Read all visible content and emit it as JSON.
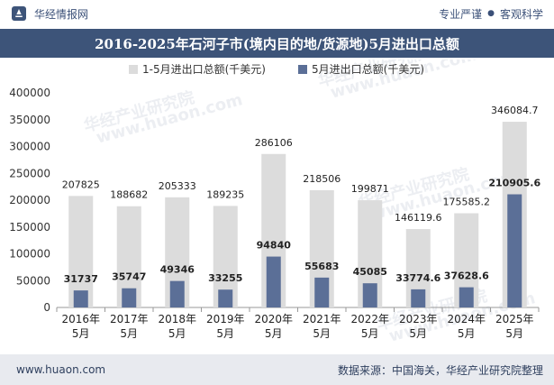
{
  "header": {
    "brand": "华经情报网",
    "tagline_left": "专业严谨",
    "tagline_sep": "●",
    "tagline_right": "客观科学"
  },
  "title": "2016-2025年石河子市(境内目的地/货源地)5月进出口总额",
  "footer": {
    "url": "www.huaon.com",
    "source": "数据来源：中国海关，华经产业研究院整理"
  },
  "watermark": "华经产业研究院",
  "watermark_url": "www.huaon.com",
  "colors": {
    "series1": "#dcdcdc",
    "series2": "#5b6f97",
    "title_bg": "#3d5479"
  },
  "chart_data": {
    "type": "bar",
    "categories": [
      [
        "2016年",
        "5月"
      ],
      [
        "2017年",
        "5月"
      ],
      [
        "2018年",
        "5月"
      ],
      [
        "2019年",
        "5月"
      ],
      [
        "2020年",
        "5月"
      ],
      [
        "2021年",
        "5月"
      ],
      [
        "2022年",
        "5月"
      ],
      [
        "2023年",
        "5月"
      ],
      [
        "2024年",
        "5月"
      ],
      [
        "2025年",
        "5月"
      ]
    ],
    "series": [
      {
        "name": "1-5月进出口总额(千美元)",
        "values": [
          207825,
          188682,
          205333,
          189235,
          286106,
          218506,
          199871,
          146119.6,
          175585.2,
          346084.7
        ],
        "labels": [
          "207825",
          "188682",
          "205333",
          "189235",
          "286106",
          "218506",
          "199871",
          "146119.6",
          "175585.2",
          "346084.7"
        ]
      },
      {
        "name": "5月进出口总额(千美元)",
        "values": [
          31737,
          35747,
          49346,
          33255,
          94840,
          55683,
          45085,
          33774.6,
          37628.6,
          210905.6
        ],
        "labels": [
          "31737",
          "35747",
          "49346",
          "33255",
          "94840",
          "55683",
          "45085",
          "33774.6",
          "37628.6",
          "210905.6"
        ]
      }
    ],
    "yticks": [
      "0",
      "50000",
      "100000",
      "150000",
      "200000",
      "250000",
      "300000",
      "350000",
      "400000"
    ],
    "ylim": [
      0,
      400000
    ],
    "legend": "top",
    "grid": false
  }
}
